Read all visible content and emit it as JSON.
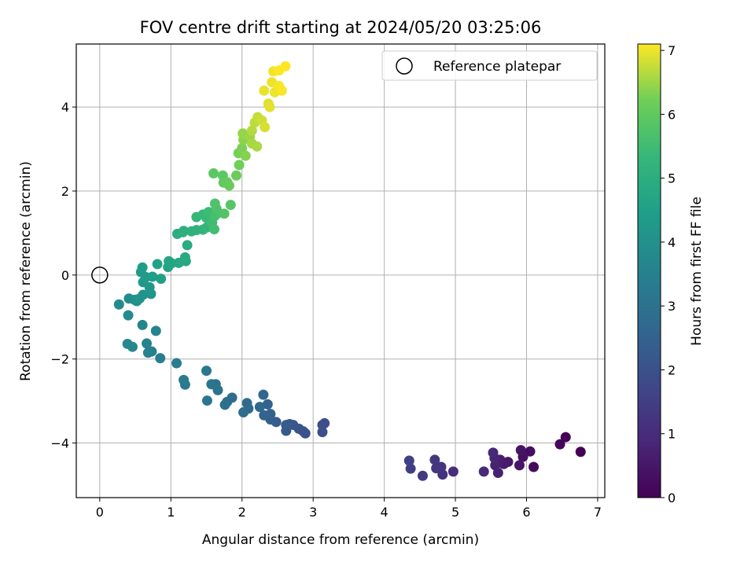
{
  "chart_data": {
    "type": "scatter",
    "title": "FOV centre drift starting at 2024/05/20 03:25:06",
    "xlabel": "Angular distance from reference (arcmin)",
    "ylabel": "Rotation from reference (arcmin)",
    "xlim": [
      -0.33,
      7.1
    ],
    "ylim": [
      -5.3,
      5.5
    ],
    "xticks": [
      0,
      1,
      2,
      3,
      4,
      5,
      6,
      7
    ],
    "yticks": [
      -4,
      -2,
      0,
      2,
      4
    ],
    "grid": true,
    "legend": {
      "position": "top-right",
      "entries": [
        "Reference platepar"
      ]
    },
    "reference_point": {
      "x": 0,
      "y": 0,
      "label": "Reference platepar"
    },
    "colorbar": {
      "label": "Hours from first FF file",
      "colormap": "viridis",
      "range": [
        0,
        7.1
      ],
      "ticks": [
        0,
        1,
        2,
        3,
        4,
        5,
        6,
        7
      ]
    },
    "points": [
      [
        6.76,
        -4.21,
        0.0
      ],
      [
        6.55,
        -3.86,
        0.06
      ],
      [
        6.47,
        -4.03,
        0.12
      ],
      [
        6.1,
        -4.57,
        0.25
      ],
      [
        6.05,
        -4.2,
        0.31
      ],
      [
        5.95,
        -4.33,
        0.37
      ],
      [
        5.92,
        -4.17,
        0.43
      ],
      [
        5.9,
        -4.53,
        0.48
      ],
      [
        5.74,
        -4.45,
        0.55
      ],
      [
        5.68,
        -4.5,
        0.6
      ],
      [
        5.63,
        -4.4,
        0.67
      ],
      [
        5.6,
        -4.71,
        0.72
      ],
      [
        5.56,
        -4.53,
        0.78
      ],
      [
        5.55,
        -4.36,
        0.84
      ],
      [
        5.53,
        -4.23,
        0.9
      ],
      [
        5.4,
        -4.68,
        0.97
      ],
      [
        4.97,
        -4.68,
        1.05
      ],
      [
        4.82,
        -4.75,
        1.13
      ],
      [
        4.8,
        -4.57,
        1.2
      ],
      [
        4.73,
        -4.6,
        1.27
      ],
      [
        4.71,
        -4.4,
        1.33
      ],
      [
        4.54,
        -4.78,
        1.4
      ],
      [
        4.37,
        -4.61,
        1.47
      ],
      [
        4.35,
        -4.42,
        1.53
      ],
      [
        3.16,
        -3.53,
        1.85
      ],
      [
        3.13,
        -3.57,
        1.9
      ],
      [
        3.13,
        -3.74,
        1.95
      ],
      [
        2.89,
        -3.77,
        2.0
      ],
      [
        2.86,
        -3.72,
        2.05
      ],
      [
        2.8,
        -3.66,
        2.1
      ],
      [
        2.72,
        -3.57,
        2.15
      ],
      [
        2.67,
        -3.55,
        2.2
      ],
      [
        2.62,
        -3.71,
        2.25
      ],
      [
        2.62,
        -3.57,
        2.3
      ],
      [
        2.48,
        -3.5,
        2.35
      ],
      [
        2.4,
        -3.44,
        2.4
      ],
      [
        2.4,
        -3.31,
        2.45
      ],
      [
        2.36,
        -3.08,
        2.5
      ],
      [
        2.31,
        -3.34,
        2.55
      ],
      [
        2.3,
        -2.85,
        2.6
      ],
      [
        2.25,
        -3.14,
        2.65
      ],
      [
        2.09,
        -3.18,
        2.7
      ],
      [
        2.07,
        -3.05,
        2.75
      ],
      [
        2.02,
        -3.27,
        2.8
      ],
      [
        1.86,
        -2.92,
        2.85
      ],
      [
        1.79,
        -3.02,
        2.9
      ],
      [
        1.76,
        -3.09,
        2.95
      ],
      [
        1.66,
        -2.74,
        3.0
      ],
      [
        1.63,
        -2.6,
        3.05
      ],
      [
        1.57,
        -2.6,
        3.1
      ],
      [
        1.51,
        -2.99,
        3.15
      ],
      [
        1.5,
        -2.28,
        3.2
      ],
      [
        1.2,
        -2.61,
        3.25
      ],
      [
        1.18,
        -2.5,
        3.3
      ],
      [
        1.08,
        -2.1,
        3.35
      ],
      [
        0.85,
        -1.98,
        3.4
      ],
      [
        0.73,
        -1.82,
        3.45
      ],
      [
        0.68,
        -1.85,
        3.5
      ],
      [
        0.66,
        -1.63,
        3.55
      ],
      [
        0.79,
        -1.33,
        3.6
      ],
      [
        0.6,
        -1.19,
        3.65
      ],
      [
        0.46,
        -1.71,
        3.7
      ],
      [
        0.39,
        -1.64,
        3.75
      ],
      [
        0.4,
        -0.96,
        3.8
      ],
      [
        0.27,
        -0.7,
        3.85
      ],
      [
        0.41,
        -0.56,
        3.9
      ],
      [
        0.49,
        -0.59,
        3.95
      ],
      [
        0.52,
        -0.62,
        4.0
      ],
      [
        0.56,
        -0.56,
        4.05
      ],
      [
        0.61,
        -0.47,
        4.1
      ],
      [
        0.72,
        -0.45,
        4.15
      ],
      [
        0.7,
        -0.29,
        4.2
      ],
      [
        0.61,
        -0.17,
        4.25
      ],
      [
        0.65,
        -0.05,
        4.3
      ],
      [
        0.58,
        0.07,
        4.35
      ],
      [
        0.6,
        0.18,
        4.4
      ],
      [
        0.74,
        -0.04,
        4.45
      ],
      [
        0.86,
        -0.09,
        4.5
      ],
      [
        0.81,
        0.26,
        4.55
      ],
      [
        0.96,
        0.19,
        4.6
      ],
      [
        1.01,
        0.28,
        4.65
      ],
      [
        0.97,
        0.33,
        4.7
      ],
      [
        1.11,
        0.29,
        4.75
      ],
      [
        1.21,
        0.33,
        4.8
      ],
      [
        1.2,
        0.42,
        4.85
      ],
      [
        1.23,
        0.71,
        4.9
      ],
      [
        1.09,
        0.98,
        4.95
      ],
      [
        1.17,
        1.02,
        5.0
      ],
      [
        1.18,
        1.05,
        5.05
      ],
      [
        1.29,
        1.04,
        5.1
      ],
      [
        1.36,
        1.07,
        5.15
      ],
      [
        1.45,
        1.08,
        5.2
      ],
      [
        1.5,
        1.13,
        5.25
      ],
      [
        1.36,
        1.38,
        5.3
      ],
      [
        1.45,
        1.44,
        5.35
      ],
      [
        1.5,
        1.36,
        5.4
      ],
      [
        1.53,
        1.5,
        5.45
      ],
      [
        1.58,
        1.25,
        5.5
      ],
      [
        1.61,
        1.09,
        5.55
      ],
      [
        1.62,
        1.41,
        5.6
      ],
      [
        1.67,
        1.48,
        5.65
      ],
      [
        1.64,
        1.58,
        5.7
      ],
      [
        1.62,
        1.7,
        5.75
      ],
      [
        1.75,
        1.46,
        5.8
      ],
      [
        1.84,
        1.67,
        5.85
      ],
      [
        1.6,
        2.42,
        5.9
      ],
      [
        1.73,
        2.37,
        5.95
      ],
      [
        1.74,
        2.2,
        6.0
      ],
      [
        1.79,
        2.21,
        6.05
      ],
      [
        1.82,
        2.13,
        6.1
      ],
      [
        1.92,
        2.37,
        6.15
      ],
      [
        1.96,
        2.62,
        6.2
      ],
      [
        1.95,
        2.9,
        6.25
      ],
      [
        2.0,
        3.02,
        6.3
      ],
      [
        2.05,
        2.84,
        6.35
      ],
      [
        2.02,
        3.22,
        6.4
      ],
      [
        2.01,
        3.37,
        6.45
      ],
      [
        2.11,
        3.3,
        6.5
      ],
      [
        2.14,
        3.13,
        6.55
      ],
      [
        2.21,
        3.06,
        6.6
      ],
      [
        2.14,
        3.44,
        6.65
      ],
      [
        2.18,
        3.63,
        6.7
      ],
      [
        2.22,
        3.76,
        6.75
      ],
      [
        2.28,
        3.68,
        6.8
      ],
      [
        2.32,
        3.52,
        6.85
      ],
      [
        2.37,
        4.08,
        6.9
      ],
      [
        2.39,
        4.0,
        6.93
      ],
      [
        2.31,
        4.39,
        6.96
      ],
      [
        2.42,
        4.59,
        6.99
      ],
      [
        2.46,
        4.35,
        7.01
      ],
      [
        2.44,
        4.85,
        7.03
      ],
      [
        2.52,
        4.5,
        7.05
      ],
      [
        2.56,
        4.39,
        7.07
      ],
      [
        2.52,
        4.87,
        7.09
      ],
      [
        2.61,
        4.97,
        7.1
      ]
    ]
  }
}
